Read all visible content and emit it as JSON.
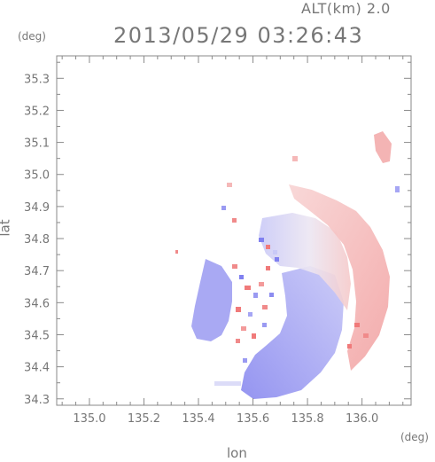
{
  "header": {
    "altitude_label": "ALT(km) 2.0",
    "timestamp": "2013/05/29 03:26:43"
  },
  "axes": {
    "y_unit": "(deg)",
    "x_unit": "(deg)",
    "xlabel": "lon",
    "ylabel": "lat",
    "x_ticks": [
      "135.0",
      "135.2",
      "135.4",
      "135.6",
      "135.8",
      "136.0"
    ],
    "y_ticks": [
      "34.3",
      "34.4",
      "34.5",
      "34.6",
      "34.7",
      "34.8",
      "34.9",
      "35.0",
      "35.1",
      "35.2",
      "35.3"
    ],
    "x_range": [
      134.88,
      136.18
    ],
    "y_range": [
      34.28,
      35.37
    ]
  },
  "colors": {
    "axis": "#8a8a8a",
    "negative_velocity": "#8f8ff0",
    "negative_velocity_light": "#c9c9f7",
    "positive_velocity": "#f3a7a7",
    "positive_velocity_light": "#f8d6d6"
  }
}
